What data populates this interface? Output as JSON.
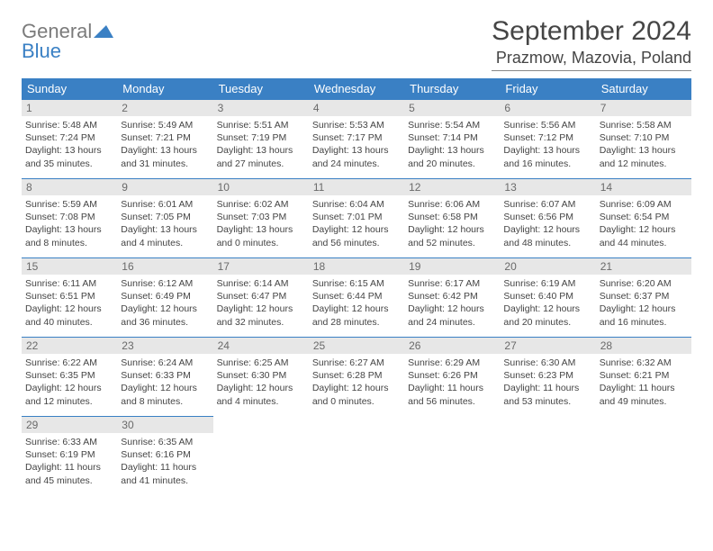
{
  "logo": {
    "top": "General",
    "bottom": "Blue"
  },
  "title": "September 2024",
  "location": "Prazmow, Mazovia, Poland",
  "colors": {
    "header_bg": "#3a80c4",
    "header_text": "#ffffff",
    "daynum_bg": "#e7e7e7",
    "daynum_text": "#6a6a6a",
    "border": "#3a80c4",
    "logo_gray": "#7b7b7b",
    "logo_blue": "#3a80c4"
  },
  "weekdays": [
    "Sunday",
    "Monday",
    "Tuesday",
    "Wednesday",
    "Thursday",
    "Friday",
    "Saturday"
  ],
  "weeks": [
    [
      {
        "n": "1",
        "sr": "Sunrise: 5:48 AM",
        "ss": "Sunset: 7:24 PM",
        "dl1": "Daylight: 13 hours",
        "dl2": "and 35 minutes."
      },
      {
        "n": "2",
        "sr": "Sunrise: 5:49 AM",
        "ss": "Sunset: 7:21 PM",
        "dl1": "Daylight: 13 hours",
        "dl2": "and 31 minutes."
      },
      {
        "n": "3",
        "sr": "Sunrise: 5:51 AM",
        "ss": "Sunset: 7:19 PM",
        "dl1": "Daylight: 13 hours",
        "dl2": "and 27 minutes."
      },
      {
        "n": "4",
        "sr": "Sunrise: 5:53 AM",
        "ss": "Sunset: 7:17 PM",
        "dl1": "Daylight: 13 hours",
        "dl2": "and 24 minutes."
      },
      {
        "n": "5",
        "sr": "Sunrise: 5:54 AM",
        "ss": "Sunset: 7:14 PM",
        "dl1": "Daylight: 13 hours",
        "dl2": "and 20 minutes."
      },
      {
        "n": "6",
        "sr": "Sunrise: 5:56 AM",
        "ss": "Sunset: 7:12 PM",
        "dl1": "Daylight: 13 hours",
        "dl2": "and 16 minutes."
      },
      {
        "n": "7",
        "sr": "Sunrise: 5:58 AM",
        "ss": "Sunset: 7:10 PM",
        "dl1": "Daylight: 13 hours",
        "dl2": "and 12 minutes."
      }
    ],
    [
      {
        "n": "8",
        "sr": "Sunrise: 5:59 AM",
        "ss": "Sunset: 7:08 PM",
        "dl1": "Daylight: 13 hours",
        "dl2": "and 8 minutes."
      },
      {
        "n": "9",
        "sr": "Sunrise: 6:01 AM",
        "ss": "Sunset: 7:05 PM",
        "dl1": "Daylight: 13 hours",
        "dl2": "and 4 minutes."
      },
      {
        "n": "10",
        "sr": "Sunrise: 6:02 AM",
        "ss": "Sunset: 7:03 PM",
        "dl1": "Daylight: 13 hours",
        "dl2": "and 0 minutes."
      },
      {
        "n": "11",
        "sr": "Sunrise: 6:04 AM",
        "ss": "Sunset: 7:01 PM",
        "dl1": "Daylight: 12 hours",
        "dl2": "and 56 minutes."
      },
      {
        "n": "12",
        "sr": "Sunrise: 6:06 AM",
        "ss": "Sunset: 6:58 PM",
        "dl1": "Daylight: 12 hours",
        "dl2": "and 52 minutes."
      },
      {
        "n": "13",
        "sr": "Sunrise: 6:07 AM",
        "ss": "Sunset: 6:56 PM",
        "dl1": "Daylight: 12 hours",
        "dl2": "and 48 minutes."
      },
      {
        "n": "14",
        "sr": "Sunrise: 6:09 AM",
        "ss": "Sunset: 6:54 PM",
        "dl1": "Daylight: 12 hours",
        "dl2": "and 44 minutes."
      }
    ],
    [
      {
        "n": "15",
        "sr": "Sunrise: 6:11 AM",
        "ss": "Sunset: 6:51 PM",
        "dl1": "Daylight: 12 hours",
        "dl2": "and 40 minutes."
      },
      {
        "n": "16",
        "sr": "Sunrise: 6:12 AM",
        "ss": "Sunset: 6:49 PM",
        "dl1": "Daylight: 12 hours",
        "dl2": "and 36 minutes."
      },
      {
        "n": "17",
        "sr": "Sunrise: 6:14 AM",
        "ss": "Sunset: 6:47 PM",
        "dl1": "Daylight: 12 hours",
        "dl2": "and 32 minutes."
      },
      {
        "n": "18",
        "sr": "Sunrise: 6:15 AM",
        "ss": "Sunset: 6:44 PM",
        "dl1": "Daylight: 12 hours",
        "dl2": "and 28 minutes."
      },
      {
        "n": "19",
        "sr": "Sunrise: 6:17 AM",
        "ss": "Sunset: 6:42 PM",
        "dl1": "Daylight: 12 hours",
        "dl2": "and 24 minutes."
      },
      {
        "n": "20",
        "sr": "Sunrise: 6:19 AM",
        "ss": "Sunset: 6:40 PM",
        "dl1": "Daylight: 12 hours",
        "dl2": "and 20 minutes."
      },
      {
        "n": "21",
        "sr": "Sunrise: 6:20 AM",
        "ss": "Sunset: 6:37 PM",
        "dl1": "Daylight: 12 hours",
        "dl2": "and 16 minutes."
      }
    ],
    [
      {
        "n": "22",
        "sr": "Sunrise: 6:22 AM",
        "ss": "Sunset: 6:35 PM",
        "dl1": "Daylight: 12 hours",
        "dl2": "and 12 minutes."
      },
      {
        "n": "23",
        "sr": "Sunrise: 6:24 AM",
        "ss": "Sunset: 6:33 PM",
        "dl1": "Daylight: 12 hours",
        "dl2": "and 8 minutes."
      },
      {
        "n": "24",
        "sr": "Sunrise: 6:25 AM",
        "ss": "Sunset: 6:30 PM",
        "dl1": "Daylight: 12 hours",
        "dl2": "and 4 minutes."
      },
      {
        "n": "25",
        "sr": "Sunrise: 6:27 AM",
        "ss": "Sunset: 6:28 PM",
        "dl1": "Daylight: 12 hours",
        "dl2": "and 0 minutes."
      },
      {
        "n": "26",
        "sr": "Sunrise: 6:29 AM",
        "ss": "Sunset: 6:26 PM",
        "dl1": "Daylight: 11 hours",
        "dl2": "and 56 minutes."
      },
      {
        "n": "27",
        "sr": "Sunrise: 6:30 AM",
        "ss": "Sunset: 6:23 PM",
        "dl1": "Daylight: 11 hours",
        "dl2": "and 53 minutes."
      },
      {
        "n": "28",
        "sr": "Sunrise: 6:32 AM",
        "ss": "Sunset: 6:21 PM",
        "dl1": "Daylight: 11 hours",
        "dl2": "and 49 minutes."
      }
    ],
    [
      {
        "n": "29",
        "sr": "Sunrise: 6:33 AM",
        "ss": "Sunset: 6:19 PM",
        "dl1": "Daylight: 11 hours",
        "dl2": "and 45 minutes."
      },
      {
        "n": "30",
        "sr": "Sunrise: 6:35 AM",
        "ss": "Sunset: 6:16 PM",
        "dl1": "Daylight: 11 hours",
        "dl2": "and 41 minutes."
      },
      null,
      null,
      null,
      null,
      null
    ]
  ]
}
